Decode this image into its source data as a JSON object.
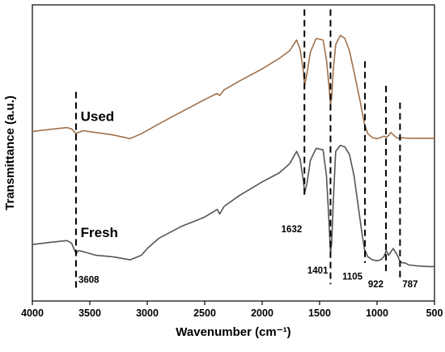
{
  "chart_data": {
    "type": "line",
    "title": "",
    "xlabel": "Wavenumber (cm⁻¹)",
    "ylabel": "Transmittance (a.u.)",
    "xlim": [
      4000,
      500
    ],
    "x_reversed": true,
    "x_ticks": [
      "4000",
      "3500",
      "3000",
      "2500",
      "2000",
      "1500",
      "1000",
      "500"
    ],
    "x_tick_values": [
      4000,
      3500,
      3000,
      2500,
      2000,
      1500,
      1000,
      500
    ],
    "y_ticks_shown": false,
    "grid": false,
    "legend": "none",
    "series": [
      {
        "name": "Used",
        "color": "#a0704a",
        "x": [
          4000,
          3850,
          3700,
          3660,
          3620,
          3600,
          3560,
          3450,
          3300,
          3150,
          3050,
          2900,
          2700,
          2500,
          2390,
          2370,
          2330,
          2200,
          2000,
          1850,
          1760,
          1700,
          1670,
          1640,
          1630,
          1610,
          1580,
          1530,
          1470,
          1440,
          1420,
          1405,
          1395,
          1380,
          1360,
          1320,
          1280,
          1240,
          1200,
          1150,
          1110,
          1080,
          1040,
          1000,
          970,
          940,
          920,
          900,
          880,
          860,
          830,
          800,
          780,
          760,
          720,
          650,
          550,
          500
        ],
        "y": [
          0.755,
          0.762,
          0.768,
          0.764,
          0.748,
          0.752,
          0.758,
          0.752,
          0.744,
          0.732,
          0.748,
          0.78,
          0.82,
          0.86,
          0.88,
          0.873,
          0.892,
          0.92,
          0.96,
          0.995,
          1.02,
          1.055,
          1.025,
          0.95,
          0.905,
          0.945,
          1.015,
          1.06,
          1.055,
          0.99,
          0.91,
          0.845,
          0.865,
          0.96,
          1.04,
          1.07,
          1.06,
          1.02,
          0.95,
          0.86,
          0.78,
          0.748,
          0.735,
          0.732,
          0.735,
          0.74,
          0.736,
          0.742,
          0.752,
          0.745,
          0.735,
          0.732,
          0.735,
          0.734,
          0.733,
          0.733,
          0.733,
          0.733
        ]
      },
      {
        "name": "Fresh",
        "color": "#555555",
        "x": [
          4000,
          3850,
          3700,
          3660,
          3620,
          3600,
          3560,
          3450,
          3300,
          3150,
          3050,
          3000,
          2900,
          2700,
          2500,
          2390,
          2370,
          2330,
          2200,
          2000,
          1850,
          1760,
          1700,
          1670,
          1640,
          1630,
          1610,
          1580,
          1530,
          1470,
          1440,
          1420,
          1405,
          1395,
          1380,
          1360,
          1320,
          1280,
          1240,
          1200,
          1160,
          1130,
          1110,
          1080,
          1040,
          1000,
          970,
          940,
          920,
          900,
          880,
          860,
          830,
          800,
          780,
          760,
          720,
          650,
          550,
          500
        ],
        "y": [
          0.385,
          0.392,
          0.398,
          0.39,
          0.355,
          0.365,
          0.362,
          0.35,
          0.345,
          0.335,
          0.35,
          0.372,
          0.405,
          0.445,
          0.475,
          0.5,
          0.485,
          0.51,
          0.545,
          0.59,
          0.62,
          0.65,
          0.69,
          0.665,
          0.59,
          0.555,
          0.585,
          0.66,
          0.7,
          0.695,
          0.61,
          0.47,
          0.355,
          0.39,
          0.53,
          0.69,
          0.71,
          0.705,
          0.68,
          0.61,
          0.5,
          0.42,
          0.37,
          0.345,
          0.335,
          0.332,
          0.335,
          0.345,
          0.365,
          0.35,
          0.36,
          0.372,
          0.355,
          0.33,
          0.325,
          0.325,
          0.318,
          0.315,
          0.313,
          0.313
        ]
      }
    ],
    "series_labels": [
      {
        "text": "Used",
        "x": 3580,
        "y": 0.79
      },
      {
        "text": "Fresh",
        "x": 3580,
        "y": 0.41
      }
    ],
    "peak_markers": [
      {
        "label": "3608",
        "x": 3620,
        "y_top": 0.885,
        "y_bottom": 0.235,
        "label_side": "right",
        "label_y": 0.26
      },
      {
        "label": "1632",
        "x": 1632,
        "y_top": 1.155,
        "y_bottom": 0.545,
        "label_side": "left",
        "label_y": 0.425
      },
      {
        "label": "1401",
        "x": 1405,
        "y_top": 1.155,
        "y_bottom": 0.255,
        "label_side": "left",
        "label_y": 0.29
      },
      {
        "label": "1105",
        "x": 1105,
        "y_top": 0.985,
        "y_bottom": 0.325,
        "label_side": "left",
        "label_y": 0.27
      },
      {
        "label": "922",
        "x": 922,
        "y_top": 0.905,
        "y_bottom": 0.29,
        "label_side": "left",
        "label_y": 0.245
      },
      {
        "label": "787",
        "x": 800,
        "y_top": 0.85,
        "y_bottom": 0.265,
        "label_side": "right",
        "label_y": 0.245
      }
    ],
    "ylim": [
      0.2,
      1.17
    ]
  }
}
